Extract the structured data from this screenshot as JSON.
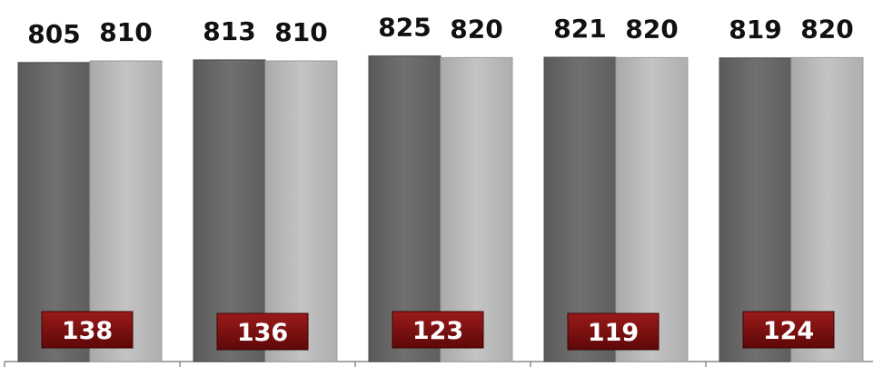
{
  "chart_data": {
    "type": "bar",
    "categories": [
      "",
      "",
      "",
      "",
      ""
    ],
    "series": [
      {
        "values": [
          805,
          813,
          825,
          821,
          819
        ],
        "color": "#6b6b6b"
      },
      {
        "values": [
          810,
          810,
          820,
          820,
          820
        ],
        "color": "#b9b9b9"
      }
    ],
    "badges": {
      "values": [
        138,
        136,
        123,
        119,
        124
      ],
      "color": "#7a0f0f"
    },
    "grid": false,
    "legend": "none"
  }
}
